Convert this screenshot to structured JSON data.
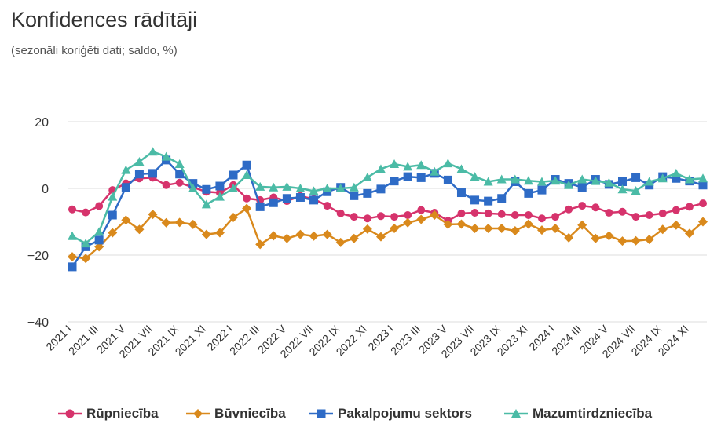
{
  "title": "Konfidences rādītāji",
  "subtitle": "(sezonāli koriģēti dati; saldo, %)",
  "chart_data": {
    "type": "line",
    "title": "Konfidences rādītāji",
    "subtitle": "(sezonāli koriģēti dati; saldo, %)",
    "ylim": [
      -40,
      20
    ],
    "yticks": [
      -40,
      -20,
      0,
      20
    ],
    "grid": true,
    "legend": "bottom",
    "x_labels_shown": [
      "2021 I",
      "2021 III",
      "2021 V",
      "2021 VII",
      "2021 IX",
      "2021 XI",
      "2022 I",
      "2022 III",
      "2022 V",
      "2022 VII",
      "2022 IX",
      "2022 XI",
      "2023 I",
      "2023 III",
      "2023 V",
      "2023 VII",
      "2023 IX",
      "2023 XI",
      "2024 I",
      "2024 III",
      "2024 V",
      "2024 VII",
      "2024 IX",
      "2024 XI"
    ],
    "x": [
      "2021 I",
      "2021 II",
      "2021 III",
      "2021 IV",
      "2021 V",
      "2021 VI",
      "2021 VII",
      "2021 VIII",
      "2021 IX",
      "2021 X",
      "2021 XI",
      "2021 XII",
      "2022 I",
      "2022 II",
      "2022 III",
      "2022 IV",
      "2022 V",
      "2022 VI",
      "2022 VII",
      "2022 VIII",
      "2022 IX",
      "2022 X",
      "2022 XI",
      "2022 XII",
      "2023 I",
      "2023 II",
      "2023 III",
      "2023 IV",
      "2023 V",
      "2023 VI",
      "2023 VII",
      "2023 VIII",
      "2023 IX",
      "2023 X",
      "2023 XI",
      "2023 XII",
      "2024 I",
      "2024 II",
      "2024 III",
      "2024 IV",
      "2024 V",
      "2024 VI",
      "2024 VII",
      "2024 VIII",
      "2024 IX",
      "2024 X",
      "2024 XI",
      "2024 XII"
    ],
    "series": [
      {
        "name": "Rūpniecība",
        "color": "#d6336c",
        "marker": "circle",
        "values": [
          -6.3,
          -7.2,
          -5.3,
          -0.5,
          1.5,
          3.0,
          3.2,
          1.0,
          1.7,
          0.3,
          -1.0,
          -1.3,
          1.0,
          -3.0,
          -3.5,
          -2.7,
          -3.8,
          -2.3,
          -3.2,
          -5.2,
          -7.5,
          -8.5,
          -9.0,
          -8.3,
          -8.5,
          -8.0,
          -6.5,
          -7.3,
          -9.7,
          -7.5,
          -7.3,
          -7.5,
          -7.7,
          -8.0,
          -8.0,
          -9.0,
          -8.5,
          -6.3,
          -5.2,
          -5.7,
          -7.3,
          -7.0,
          -8.5,
          -8.0,
          -7.5,
          -6.5,
          -5.5,
          -4.5
        ]
      },
      {
        "name": "Būvniecība",
        "color": "#d9891c",
        "marker": "diamond",
        "values": [
          -20.5,
          -21.0,
          -17.5,
          -13.3,
          -9.5,
          -12.3,
          -7.8,
          -10.3,
          -10.2,
          -10.8,
          -13.8,
          -13.3,
          -8.7,
          -6.0,
          -16.8,
          -14.2,
          -15.0,
          -13.8,
          -14.3,
          -13.8,
          -16.2,
          -15.0,
          -12.2,
          -14.5,
          -12.0,
          -10.3,
          -9.3,
          -8.0,
          -10.8,
          -10.7,
          -12.0,
          -12.0,
          -12.0,
          -12.7,
          -10.7,
          -12.5,
          -12.0,
          -14.8,
          -11.0,
          -15.0,
          -14.2,
          -15.8,
          -15.7,
          -15.3,
          -12.3,
          -11.0,
          -13.5,
          -10.0
        ]
      },
      {
        "name": "Pakalpojumu sektors",
        "color": "#2e6bc6",
        "marker": "square",
        "values": [
          -23.5,
          -17.5,
          -15.5,
          -8.0,
          0.3,
          4.3,
          4.5,
          8.5,
          4.3,
          1.5,
          -0.3,
          0.7,
          4.0,
          7.0,
          -5.5,
          -4.3,
          -3.0,
          -2.7,
          -3.5,
          -1.0,
          0.3,
          -2.2,
          -1.5,
          -0.2,
          2.2,
          3.5,
          3.2,
          4.5,
          2.5,
          -1.3,
          -3.5,
          -3.8,
          -3.0,
          2.0,
          -1.5,
          -0.5,
          2.7,
          1.5,
          0.3,
          2.7,
          1.2,
          2.0,
          3.2,
          1.0,
          3.5,
          3.0,
          2.2,
          1.0
        ]
      },
      {
        "name": "Mazumtirdzniecība",
        "color": "#4bbba6",
        "marker": "triangle",
        "values": [
          -14.3,
          -16.5,
          -13.0,
          -2.5,
          5.5,
          8.0,
          11.0,
          9.5,
          7.3,
          0.0,
          -4.8,
          -2.5,
          0.0,
          4.0,
          0.5,
          0.3,
          0.5,
          0.0,
          -0.8,
          0.0,
          0.0,
          0.3,
          3.3,
          5.8,
          7.3,
          6.5,
          7.0,
          5.0,
          7.5,
          5.8,
          3.5,
          2.0,
          2.7,
          2.7,
          2.3,
          2.0,
          2.3,
          1.0,
          2.7,
          2.2,
          1.7,
          -0.3,
          -0.7,
          2.0,
          3.0,
          4.5,
          2.7,
          3.0
        ]
      }
    ]
  }
}
